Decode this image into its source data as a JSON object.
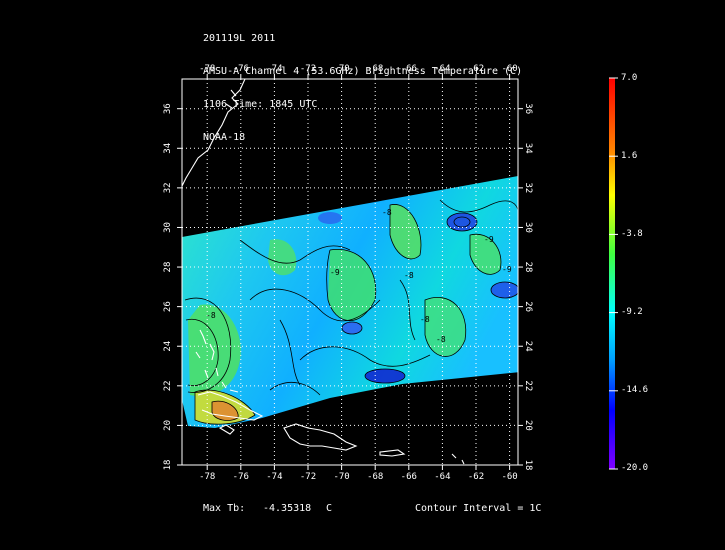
{
  "header": {
    "line1": "201119L 2011",
    "line2": "AMSU-A Channel 4 (53.6GHz) Brightness Temperature (C)",
    "line3": "1106 Time: 1845 UTC",
    "line4": "NOAA-18"
  },
  "map": {
    "lon_ticks": [
      "-78",
      "-76",
      "-74",
      "-72",
      "-70",
      "-68",
      "-66",
      "-64",
      "-62",
      "-60"
    ],
    "lat_ticks": [
      "36",
      "34",
      "32",
      "30",
      "28",
      "26",
      "24",
      "22",
      "20",
      "18"
    ],
    "lon_range": [
      -79.5,
      -59.5
    ],
    "lat_range": [
      18,
      37.5
    ],
    "contour_labels": [
      "-8",
      "-9",
      "-8",
      "-8",
      "-9",
      "-8",
      "-9",
      "-8"
    ]
  },
  "colorbar": {
    "labels": [
      "7.0",
      "1.6",
      "-3.8",
      "-9.2",
      "-14.6",
      "-20.0"
    ],
    "range": [
      -20.0,
      7.0
    ],
    "colors": [
      "#ff0000",
      "#ffff00",
      "#00ff00",
      "#00ffff",
      "#0000ff",
      "#8000ff"
    ]
  },
  "footer": {
    "max_label": "Max Tb:",
    "max_value": "-4.35318",
    "max_unit": "C",
    "contour_interval": "Contour Interval = 1C"
  }
}
